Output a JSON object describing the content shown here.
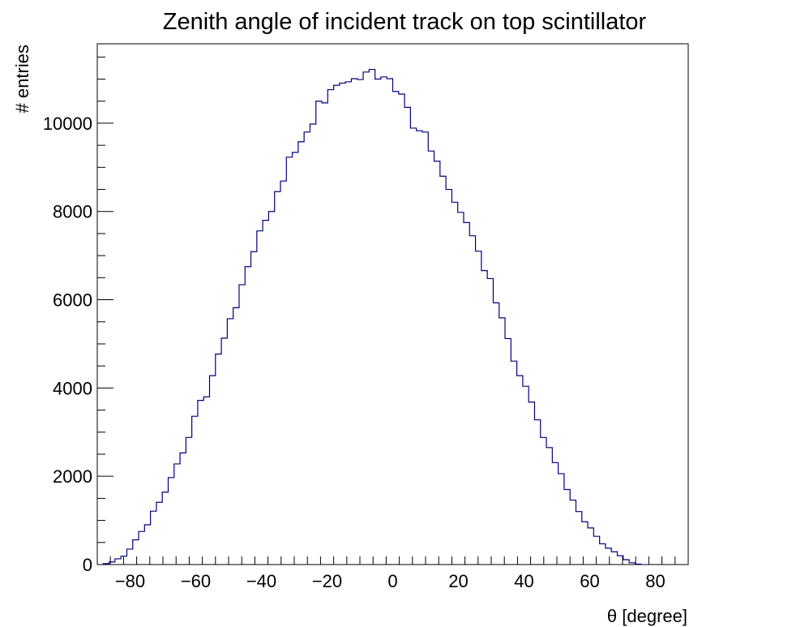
{
  "chart_data": {
    "type": "histogram",
    "title": "Zenith angle of incident track on top scintillator",
    "xlabel": "θ [degree]",
    "ylabel": "# entries",
    "xlim": [
      -90,
      90
    ],
    "ylim": [
      0,
      11800
    ],
    "bin_width": 1.8,
    "x_ticks": [
      -80,
      -60,
      -40,
      -20,
      0,
      20,
      40,
      60,
      80
    ],
    "x_tick_labels": [
      "−80",
      "−60",
      "−40",
      "−20",
      "0",
      "20",
      "40",
      "60",
      "80"
    ],
    "y_ticks": [
      0,
      2000,
      4000,
      6000,
      8000,
      10000
    ],
    "y_tick_labels": [
      "0",
      "2000",
      "4000",
      "6000",
      "8000",
      "10000"
    ],
    "line_color": "#000080",
    "grid": false,
    "legend": "none",
    "bin_edges_start": -88.2,
    "values": [
      20,
      60,
      130,
      190,
      350,
      560,
      750,
      900,
      1210,
      1410,
      1640,
      1970,
      2280,
      2530,
      2880,
      3360,
      3720,
      3800,
      4280,
      4770,
      5130,
      5570,
      5820,
      6340,
      6750,
      7090,
      7560,
      7800,
      8000,
      8450,
      8690,
      9230,
      9340,
      9580,
      9800,
      9980,
      10500,
      10460,
      10760,
      10860,
      10910,
      10940,
      11010,
      10990,
      11160,
      11220,
      11000,
      11050,
      11010,
      10720,
      10660,
      10360,
      9890,
      9830,
      9800,
      9370,
      9140,
      8800,
      8500,
      8210,
      7980,
      7750,
      7450,
      7100,
      6660,
      6480,
      5930,
      5590,
      5120,
      4610,
      4280,
      4040,
      3680,
      3280,
      2880,
      2650,
      2310,
      2060,
      1700,
      1460,
      1200,
      970,
      830,
      640,
      470,
      370,
      290,
      200,
      110,
      40,
      10
    ]
  }
}
